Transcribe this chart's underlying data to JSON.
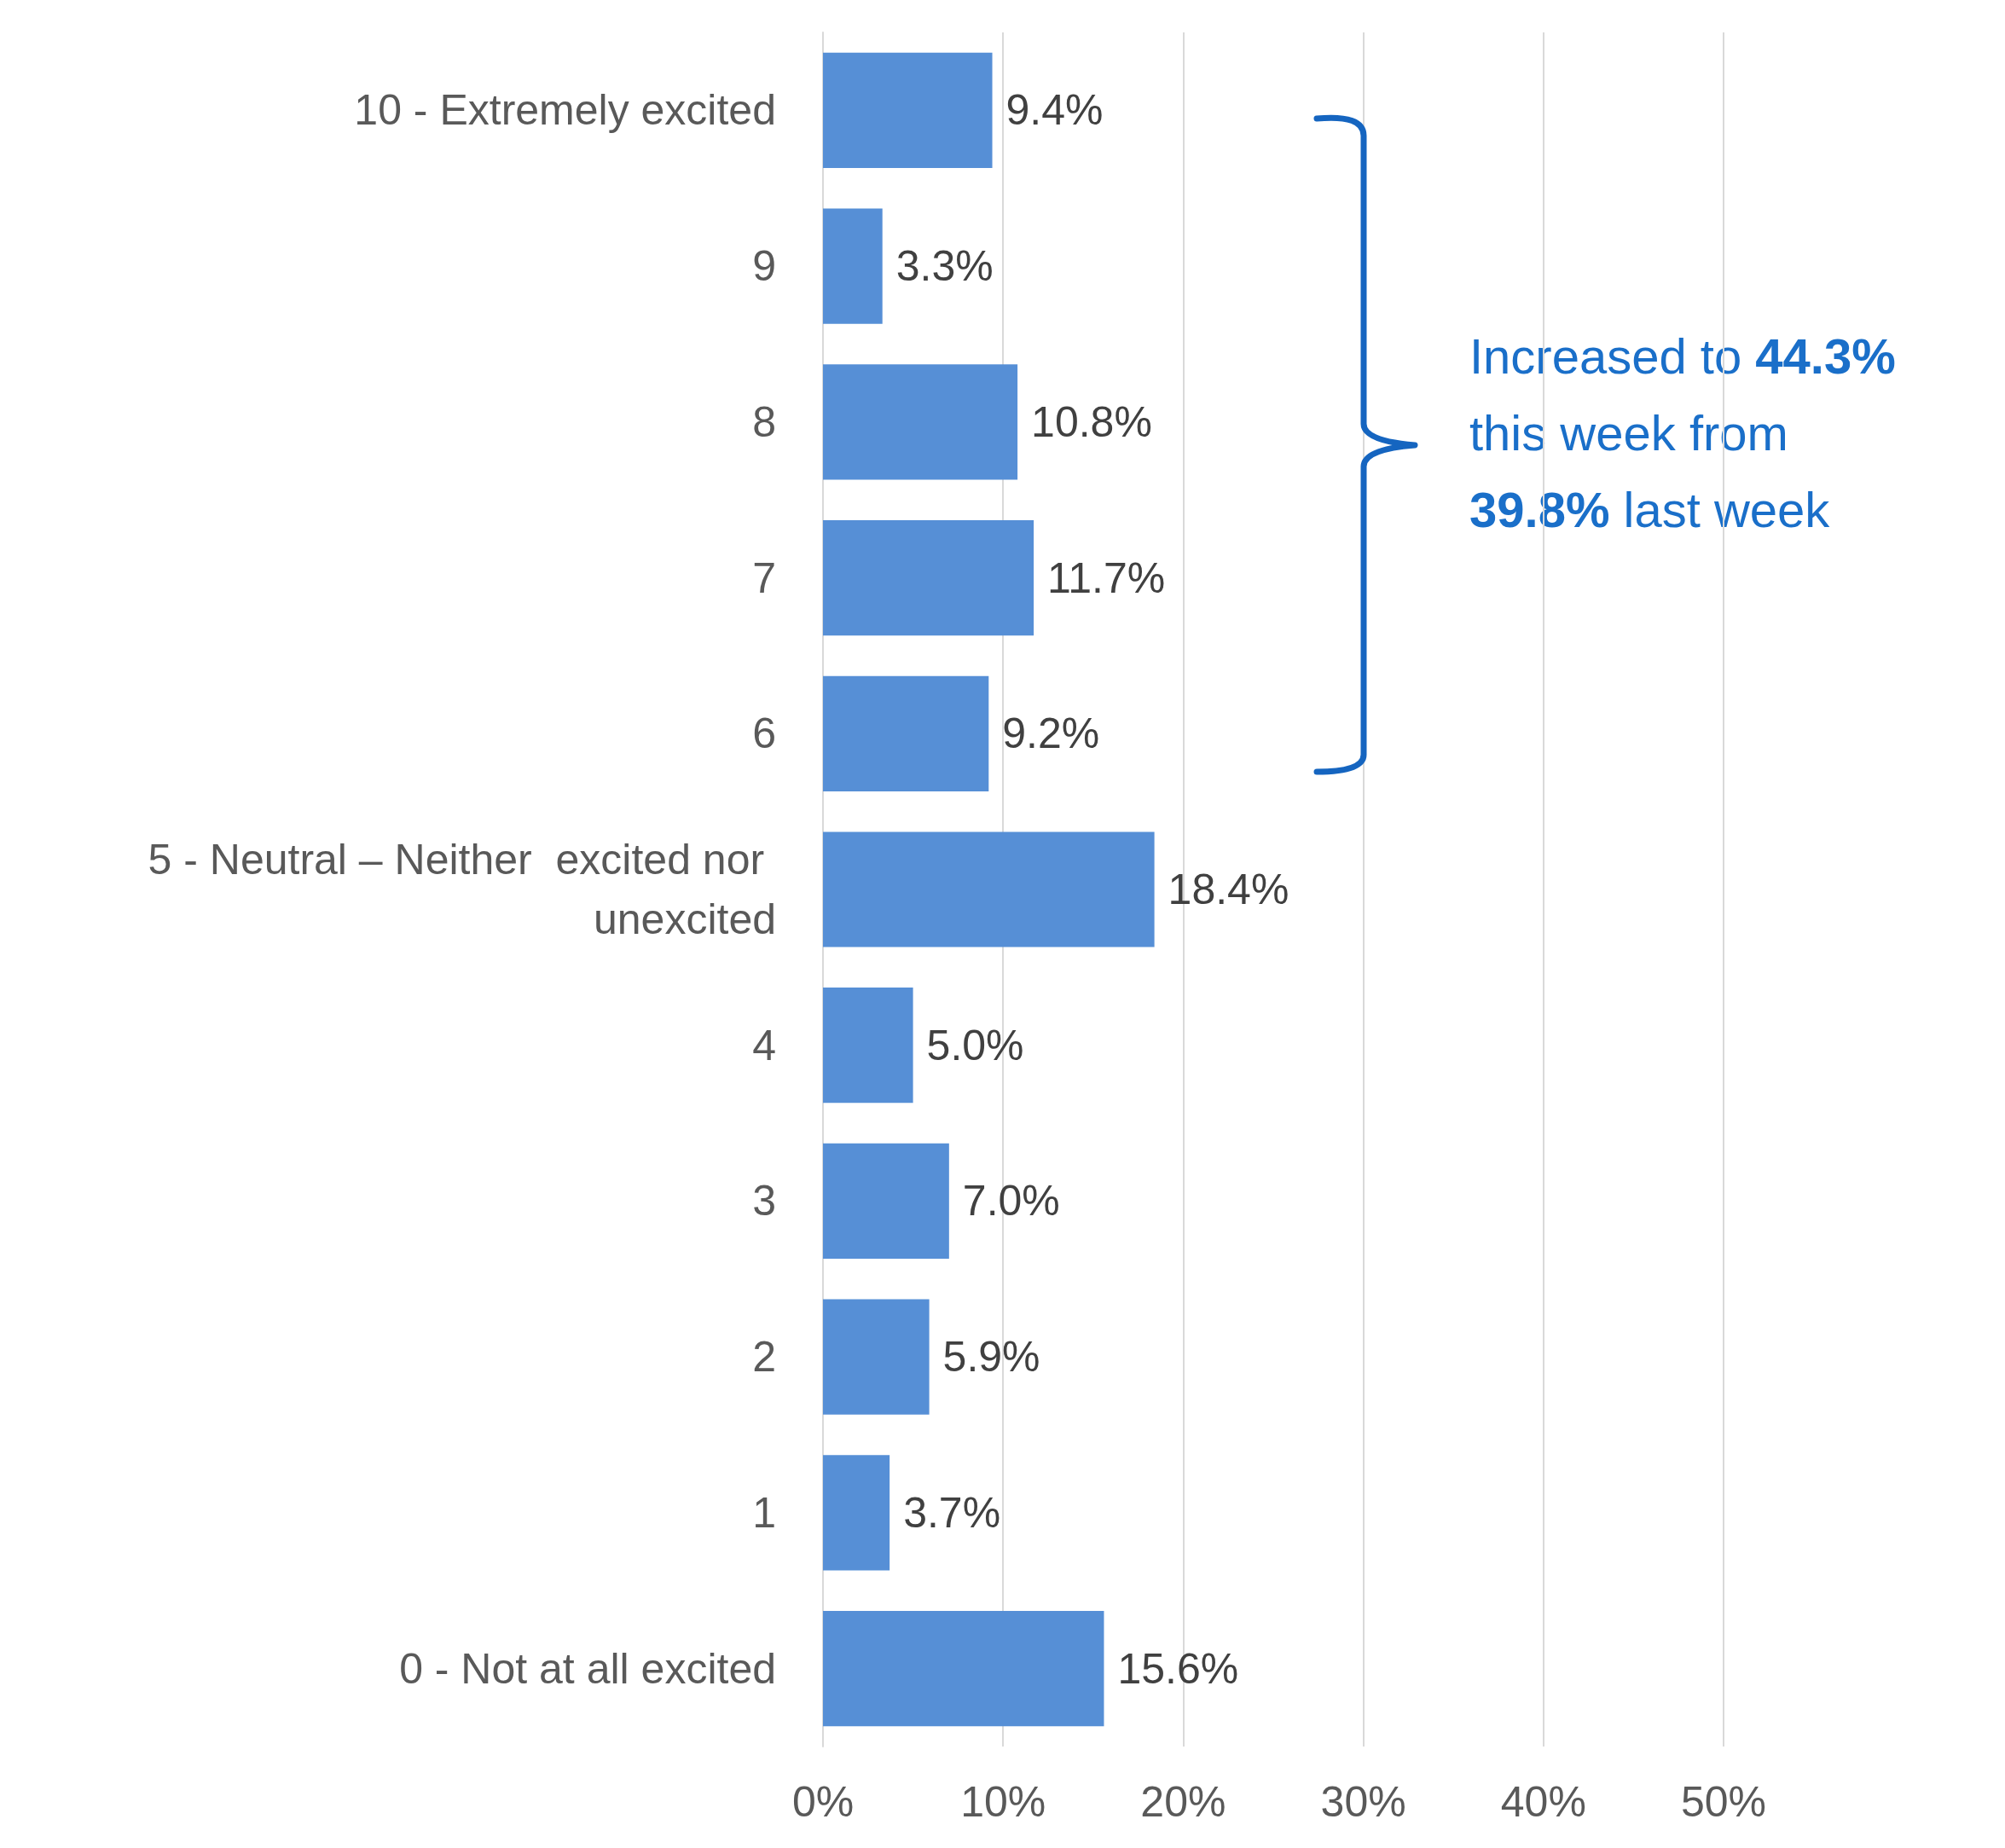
{
  "chart_data": {
    "type": "bar",
    "orientation": "horizontal",
    "categories": [
      "10 - Extremely excited",
      "9",
      "8",
      "7",
      "6",
      "5 - Neutral – Neither  excited nor unexcited",
      "4",
      "3",
      "2",
      "1",
      "0 - Not at all excited"
    ],
    "values": [
      9.4,
      3.3,
      10.8,
      11.7,
      9.2,
      18.4,
      5.0,
      7.0,
      5.9,
      3.7,
      15.6
    ],
    "value_labels": [
      "9.4%",
      "3.3%",
      "10.8%",
      "11.7%",
      "9.2%",
      "18.4%",
      "5.0%",
      "7.0%",
      "5.9%",
      "3.7%",
      "15.6%"
    ],
    "color": "#568fd6",
    "xlim": [
      0,
      50
    ],
    "xticks": [
      {
        "value": 0,
        "label": "0%"
      },
      {
        "value": 10,
        "label": "10%"
      },
      {
        "value": 20,
        "label": "20%"
      },
      {
        "value": 30,
        "label": "30%"
      },
      {
        "value": 40,
        "label": "40%"
      },
      {
        "value": 50,
        "label": "50%"
      }
    ],
    "grid": "x",
    "annotations": [
      "Increased to 44.3%\nthis week from\n39.8% last week"
    ]
  }
}
